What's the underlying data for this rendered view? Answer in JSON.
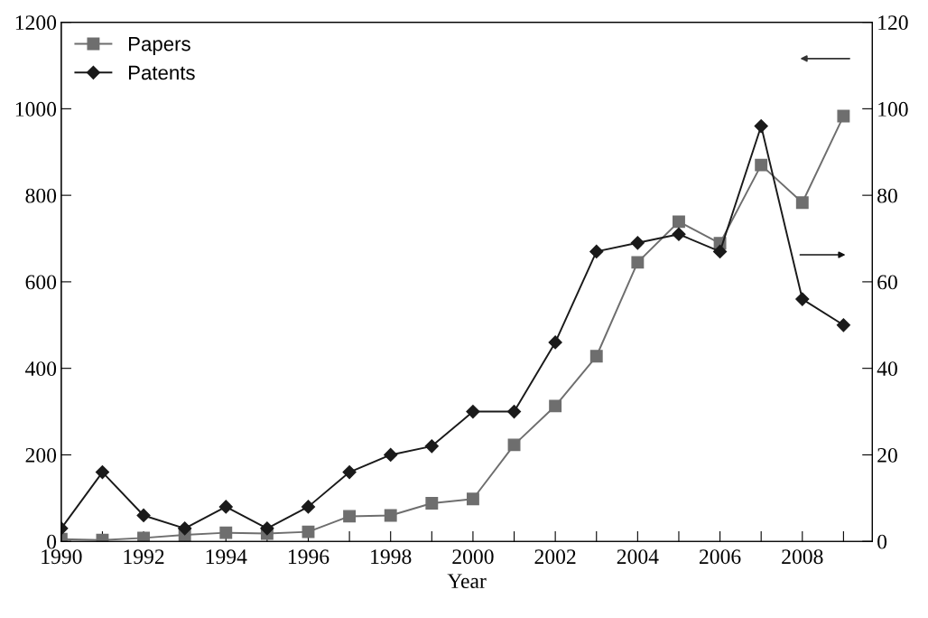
{
  "chart_data": {
    "type": "line",
    "xlabel": "Year",
    "x": [
      1990,
      1991,
      1992,
      1993,
      1994,
      1995,
      1996,
      1997,
      1998,
      1999,
      2000,
      2001,
      2002,
      2003,
      2004,
      2005,
      2006,
      2007,
      2008,
      2009
    ],
    "series": [
      {
        "name": "Papers",
        "color": "#6e6e6e",
        "marker": "square",
        "values": [
          5,
          3,
          8,
          15,
          20,
          18,
          22,
          58,
          60,
          88,
          98,
          223,
          313,
          428,
          645,
          739,
          689,
          870,
          783,
          983
        ]
      },
      {
        "name": "Patents",
        "color": "#1a1a1a",
        "marker": "diamond",
        "axis": "y2",
        "values": [
          3,
          16,
          6,
          3,
          8,
          3,
          8,
          16,
          20,
          22,
          30,
          30,
          46,
          67,
          69,
          71,
          67,
          96,
          56,
          50
        ]
      }
    ],
    "xlim": [
      1990,
      2009.7
    ],
    "xticks": [
      1990,
      {
        "value": 1991,
        "label": null
      },
      1992,
      {
        "value": 1993,
        "label": null
      },
      1994,
      {
        "value": 1995,
        "label": null
      },
      1996,
      {
        "value": 1997,
        "label": null
      },
      1998,
      {
        "value": 1999,
        "label": null
      },
      2000,
      {
        "value": 2001,
        "label": null
      },
      2002,
      {
        "value": 2003,
        "label": null
      },
      2004,
      {
        "value": 2005,
        "label": null
      },
      2006,
      {
        "value": 2007,
        "label": null
      },
      2008,
      {
        "value": 2009,
        "label": null
      }
    ],
    "ylim": [
      0,
      1200
    ],
    "yticks": [
      0,
      200,
      400,
      600,
      800,
      1000,
      1200
    ],
    "y2lim": [
      0,
      120
    ],
    "y2ticks": [
      0,
      20,
      40,
      60,
      80,
      100,
      120
    ],
    "grid": false,
    "legend": "top left",
    "line_style": "solid"
  }
}
